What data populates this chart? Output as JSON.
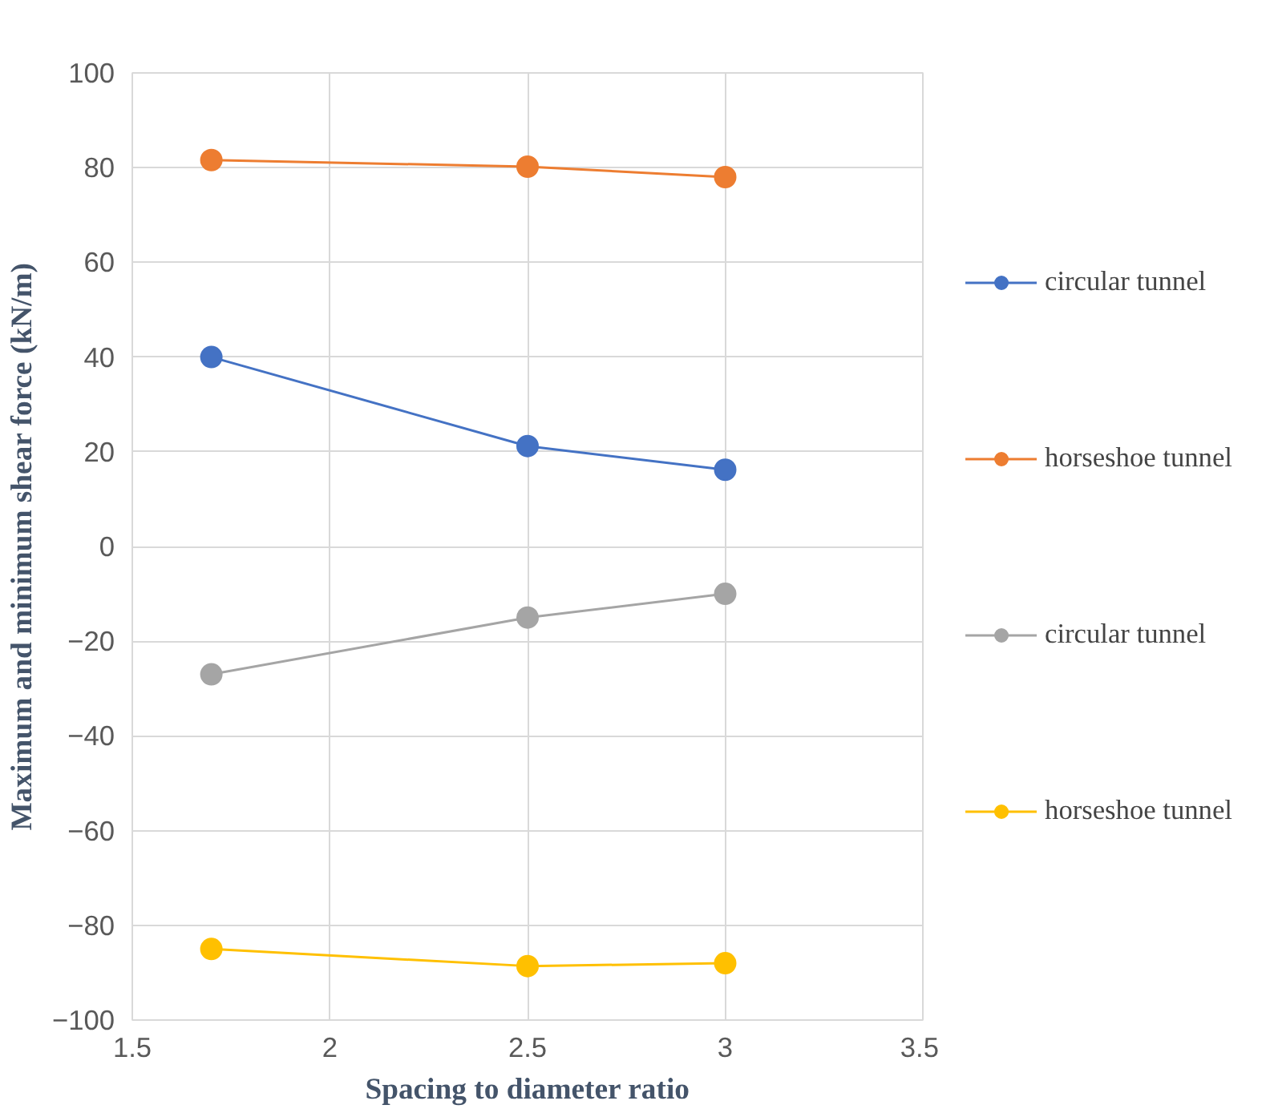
{
  "chart_data": {
    "type": "line",
    "xlabel": "Spacing to diameter ratio",
    "ylabel": "Maximum and minimum shear force (kN/m)",
    "x": [
      1.7,
      2.5,
      3
    ],
    "series": [
      {
        "name": "circular tunnel",
        "color": "#4472c4",
        "values": [
          40,
          21.2,
          16.2
        ]
      },
      {
        "name": "horseshoe tunnel",
        "color": "#ed7d31",
        "values": [
          81.6,
          80.2,
          78
        ]
      },
      {
        "name": "circular tunnel",
        "color": "#a5a5a5",
        "values": [
          -27,
          -15,
          -10
        ]
      },
      {
        "name": "horseshoe tunnel",
        "color": "#ffc000",
        "values": [
          -85,
          -88.6,
          -88
        ]
      }
    ],
    "xlim": [
      1.5,
      3.5
    ],
    "xticks": [
      1.5,
      2,
      2.5,
      3,
      3.5
    ],
    "ylim": [
      -100,
      100
    ],
    "yticks": [
      -100,
      -80,
      -60,
      -40,
      -20,
      0,
      20,
      40,
      60,
      80,
      100
    ],
    "grid": true,
    "legend": "right",
    "marker": "circle"
  }
}
